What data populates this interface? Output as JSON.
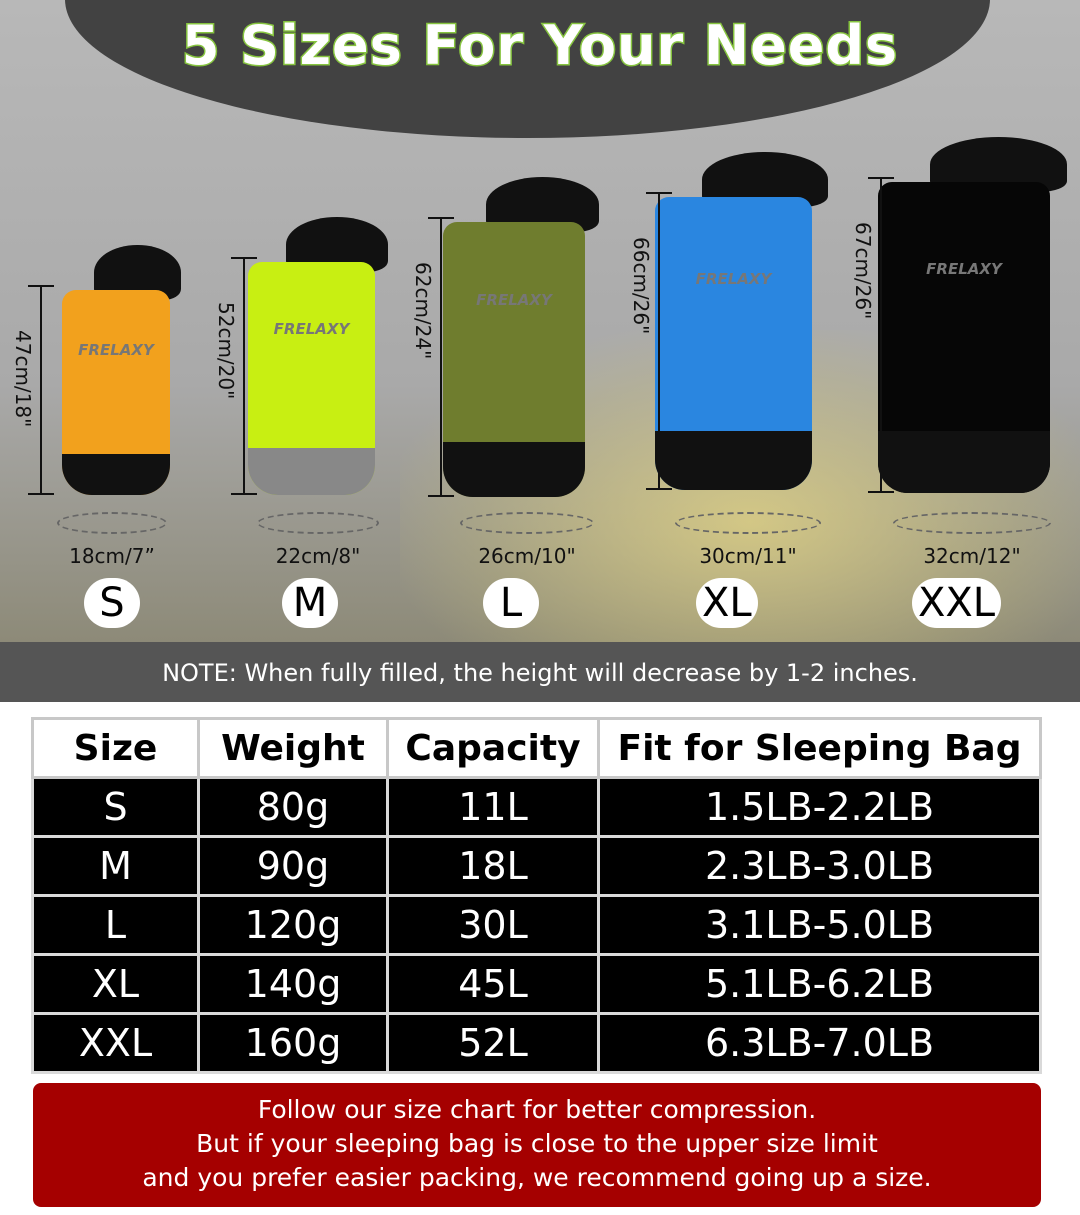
{
  "title": "5 Sizes For Your Needs",
  "brand": "FRELAXY",
  "bags": [
    {
      "size": "S",
      "height": "47cm/18\"",
      "width": "18cm/7”",
      "color": "#f2a11d"
    },
    {
      "size": "M",
      "height": "52cm/20\"",
      "width": "22cm/8\"",
      "color": "#c8ef12"
    },
    {
      "size": "L",
      "height": "62cm/24\"",
      "width": "26cm/10\"",
      "color": "#6f7d2e"
    },
    {
      "size": "XL",
      "height": "66cm/26\"",
      "width": "30cm/11\"",
      "color": "#2a86e0"
    },
    {
      "size": "XXL",
      "height": "67cm/26\"",
      "width": "32cm/12\"",
      "color": "#060606"
    }
  ],
  "note": "NOTE: When fully filled, the height will decrease by 1-2 inches.",
  "table": {
    "headers": [
      "Size",
      "Weight",
      "Capacity",
      "Fit for Sleeping Bag"
    ],
    "rows": [
      [
        "S",
        "80g",
        "11L",
        "1.5LB-2.2LB"
      ],
      [
        "M",
        "90g",
        "18L",
        "2.3LB-3.0LB"
      ],
      [
        "L",
        "120g",
        "30L",
        "3.1LB-5.0LB"
      ],
      [
        "XL",
        "140g",
        "45L",
        "5.1LB-6.2LB"
      ],
      [
        "XXL",
        "160g",
        "52L",
        "6.3LB-7.0LB"
      ]
    ]
  },
  "tip": [
    "Follow our size chart for better compression.",
    "But if your sleeping bag is close to the upper size limit",
    "and you prefer easier packing, we recommend going up a size."
  ]
}
